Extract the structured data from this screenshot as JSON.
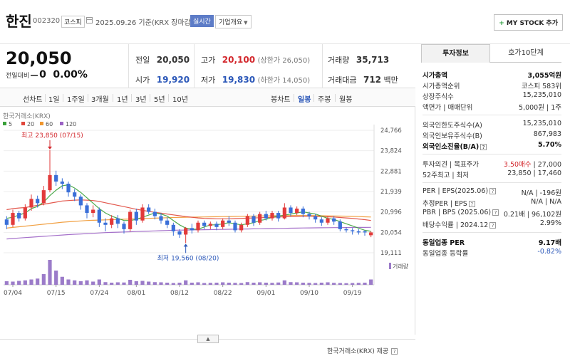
{
  "header": {
    "name": "한진",
    "code": "002320",
    "market": "코스피",
    "date": "2025.09.26 기준(KRX 장마감)",
    "realtime_label": "실시간",
    "company_info_label": "기업개요",
    "mystock_label": "MY STOCK 추가"
  },
  "summary": {
    "price": "20,050",
    "change_label": "전일대비",
    "change_value": "0",
    "change_pct": "0.00%",
    "prev_label": "전일",
    "prev": "20,050",
    "high_label": "고가",
    "high": "20,100",
    "upper_limit": "(상한가 26,050)",
    "volume_label": "거래량",
    "volume": "35,713",
    "open_label": "시가",
    "open": "19,920",
    "low_label": "저가",
    "low": "19,830",
    "lower_limit": "(하한가 14,050)",
    "amount_label": "거래대금",
    "amount": "712",
    "amount_unit": "백만"
  },
  "tabs": {
    "line_chart": "선차트",
    "periods": [
      "1일",
      "1주일",
      "3개월",
      "1년",
      "3년",
      "5년",
      "10년"
    ],
    "candle_chart": "봉차트",
    "candle_periods": [
      "일봉",
      "주봉",
      "월봉"
    ]
  },
  "chart_data": {
    "type": "candlestick",
    "title": "한국거래소(KRX)",
    "legend": [
      "5",
      "20",
      "60",
      "120"
    ],
    "legend_colors": [
      "#3aa13a",
      "#e0473b",
      "#f0962e",
      "#9b62c4"
    ],
    "y_ticks": [
      24766,
      23824,
      22881,
      21939,
      20996,
      20054,
      19111
    ],
    "y_tick_labels": [
      "24,766",
      "23,824",
      "22,881",
      "21,939",
      "20,996",
      "20,054",
      "19,111"
    ],
    "ylim": [
      19111,
      24766
    ],
    "x_tick_labels": [
      "07/04",
      "07/15",
      "07/24",
      "08/01",
      "08/12",
      "08/22",
      "09/01",
      "09/10",
      "09/19"
    ],
    "x_tick_index": [
      1,
      8,
      15,
      21,
      28,
      35,
      42,
      49,
      56
    ],
    "high_annotation": "최고 23,850 (07/15)",
    "low_annotation": "최저 19,560 (08/20)",
    "volume_label": "거래량",
    "candles": [
      {
        "o": 20650,
        "c": 20400,
        "h": 20800,
        "l": 20200
      },
      {
        "o": 20400,
        "c": 20950,
        "h": 21100,
        "l": 20300
      },
      {
        "o": 20950,
        "c": 20700,
        "h": 21050,
        "l": 20550
      },
      {
        "o": 20700,
        "c": 21200,
        "h": 21350,
        "l": 20600
      },
      {
        "o": 21200,
        "c": 21600,
        "h": 21800,
        "l": 21050
      },
      {
        "o": 21600,
        "c": 21400,
        "h": 21750,
        "l": 21200
      },
      {
        "o": 21400,
        "c": 22000,
        "h": 22200,
        "l": 21300
      },
      {
        "o": 22000,
        "c": 22700,
        "h": 23850,
        "l": 21900
      },
      {
        "o": 22700,
        "c": 22400,
        "h": 22900,
        "l": 22200
      },
      {
        "o": 22400,
        "c": 22300,
        "h": 22550,
        "l": 22050
      },
      {
        "o": 22300,
        "c": 21900,
        "h": 22400,
        "l": 21700
      },
      {
        "o": 21900,
        "c": 21700,
        "h": 22050,
        "l": 21500
      },
      {
        "o": 21700,
        "c": 21300,
        "h": 21800,
        "l": 21100
      },
      {
        "o": 21300,
        "c": 20950,
        "h": 21400,
        "l": 20700
      },
      {
        "o": 20950,
        "c": 21100,
        "h": 21300,
        "l": 20750
      },
      {
        "o": 21100,
        "c": 20500,
        "h": 21200,
        "l": 20300
      },
      {
        "o": 20500,
        "c": 20400,
        "h": 20700,
        "l": 20100
      },
      {
        "o": 20400,
        "c": 20700,
        "h": 20850,
        "l": 20250
      },
      {
        "o": 20700,
        "c": 20450,
        "h": 20850,
        "l": 20250
      },
      {
        "o": 20450,
        "c": 20200,
        "h": 20550,
        "l": 20000
      },
      {
        "o": 20200,
        "c": 21000,
        "h": 21100,
        "l": 20100
      },
      {
        "o": 21000,
        "c": 20600,
        "h": 21150,
        "l": 20400
      },
      {
        "o": 20600,
        "c": 21200,
        "h": 21350,
        "l": 20500
      },
      {
        "o": 21200,
        "c": 21000,
        "h": 21350,
        "l": 20900
      },
      {
        "o": 21000,
        "c": 20800,
        "h": 21150,
        "l": 20650
      },
      {
        "o": 20800,
        "c": 20600,
        "h": 20950,
        "l": 20450
      },
      {
        "o": 20600,
        "c": 20400,
        "h": 20750,
        "l": 20250
      },
      {
        "o": 20400,
        "c": 20100,
        "h": 20500,
        "l": 19900
      },
      {
        "o": 20100,
        "c": 19950,
        "h": 20200,
        "l": 19800
      },
      {
        "o": 19950,
        "c": 20250,
        "h": 20300,
        "l": 19560
      },
      {
        "o": 20250,
        "c": 20150,
        "h": 20450,
        "l": 20000
      },
      {
        "o": 20150,
        "c": 20500,
        "h": 20600,
        "l": 20050
      },
      {
        "o": 20500,
        "c": 20350,
        "h": 20600,
        "l": 20200
      },
      {
        "o": 20350,
        "c": 20450,
        "h": 20550,
        "l": 20200
      },
      {
        "o": 20450,
        "c": 20300,
        "h": 20550,
        "l": 20150
      },
      {
        "o": 20300,
        "c": 20600,
        "h": 20700,
        "l": 20200
      },
      {
        "o": 20600,
        "c": 20500,
        "h": 20800,
        "l": 20350
      },
      {
        "o": 20500,
        "c": 20150,
        "h": 20600,
        "l": 20050
      },
      {
        "o": 20150,
        "c": 20400,
        "h": 20500,
        "l": 20050
      },
      {
        "o": 20400,
        "c": 20800,
        "h": 20900,
        "l": 20300
      },
      {
        "o": 20800,
        "c": 20500,
        "h": 20900,
        "l": 20350
      },
      {
        "o": 20500,
        "c": 20900,
        "h": 21000,
        "l": 20400
      },
      {
        "o": 20900,
        "c": 20700,
        "h": 21050,
        "l": 20600
      },
      {
        "o": 20700,
        "c": 20950,
        "h": 21050,
        "l": 20600
      },
      {
        "o": 20950,
        "c": 20700,
        "h": 21050,
        "l": 20550
      },
      {
        "o": 20700,
        "c": 21200,
        "h": 21400,
        "l": 20650
      },
      {
        "o": 21200,
        "c": 20950,
        "h": 21300,
        "l": 20800
      },
      {
        "o": 20950,
        "c": 21150,
        "h": 21250,
        "l": 20850
      },
      {
        "o": 21150,
        "c": 20900,
        "h": 21250,
        "l": 20750
      },
      {
        "o": 20900,
        "c": 20800,
        "h": 21000,
        "l": 20650
      },
      {
        "o": 20800,
        "c": 20650,
        "h": 20900,
        "l": 20500
      },
      {
        "o": 20650,
        "c": 20500,
        "h": 20750,
        "l": 20350
      },
      {
        "o": 20500,
        "c": 20700,
        "h": 20800,
        "l": 20400
      },
      {
        "o": 20700,
        "c": 20550,
        "h": 20800,
        "l": 20400
      },
      {
        "o": 20550,
        "c": 20200,
        "h": 20650,
        "l": 20100
      },
      {
        "o": 20200,
        "c": 20150,
        "h": 20300,
        "l": 20050
      },
      {
        "o": 20150,
        "c": 20100,
        "h": 20250,
        "l": 19950
      },
      {
        "o": 20100,
        "c": 20050,
        "h": 20200,
        "l": 19950
      },
      {
        "o": 20100,
        "c": 20050,
        "h": 20150,
        "l": 19900
      },
      {
        "o": 19920,
        "c": 20050,
        "h": 20100,
        "l": 19830
      }
    ],
    "ma5": [
      20700,
      20750,
      20850,
      20950,
      21150,
      21250,
      21450,
      21750,
      22000,
      22200,
      22250,
      22100,
      21900,
      21650,
      21400,
      21150,
      20950,
      20800,
      20700,
      20600,
      20600,
      20650,
      20750,
      20850,
      20950,
      20900,
      20800,
      20600,
      20400,
      20250,
      20200,
      20200,
      20300,
      20400,
      20400,
      20450,
      20500,
      20450,
      20400,
      20450,
      20500,
      20600,
      20650,
      20750,
      20800,
      20850,
      20900,
      20950,
      21000,
      20950,
      20900,
      20800,
      20700,
      20650,
      20550,
      20450,
      20350,
      20250,
      20150,
      20100
    ],
    "ma20": [
      21100,
      21150,
      21180,
      21200,
      21250,
      21300,
      21350,
      21400,
      21450,
      21500,
      21520,
      21540,
      21550,
      21540,
      21520,
      21480,
      21420,
      21360,
      21300,
      21240,
      21180,
      21120,
      21070,
      21020,
      20980,
      20940,
      20900,
      20860,
      20820,
      20780,
      20750,
      20720,
      20700,
      20690,
      20680,
      20680,
      20680,
      20690,
      20700,
      20710,
      20720,
      20730,
      20740,
      20750,
      20760,
      20770,
      20780,
      20790,
      20800,
      20800,
      20790,
      20780,
      20770,
      20760,
      20740,
      20720,
      20700,
      20670,
      20640,
      20600
    ],
    "ma60": [
      20250,
      20280,
      20310,
      20340,
      20370,
      20400,
      20430,
      20460,
      20490,
      20520,
      20540,
      20560,
      20580,
      20600,
      20610,
      20620,
      20630,
      20640,
      20650,
      20660,
      20670,
      20680,
      20690,
      20700,
      20710,
      20720,
      20730,
      20740,
      20745,
      20750,
      20755,
      20760,
      20765,
      20770,
      20775,
      20780,
      20785,
      20790,
      20795,
      20800,
      20805,
      20810,
      20815,
      20820,
      20820,
      20825,
      20830,
      20830,
      20830,
      20830,
      20825,
      20820,
      20815,
      20810,
      20805,
      20800,
      20790,
      20780,
      20770,
      20760
    ],
    "ma120": [
      19750,
      19770,
      19790,
      19810,
      19830,
      19850,
      19870,
      19890,
      19910,
      19930,
      19950,
      19965,
      19980,
      19995,
      20010,
      20025,
      20040,
      20050,
      20060,
      20070,
      20080,
      20090,
      20100,
      20110,
      20120,
      20130,
      20140,
      20150,
      20155,
      20160,
      20165,
      20170,
      20175,
      20180,
      20185,
      20190,
      20195,
      20200,
      20205,
      20210,
      20215,
      20220,
      20225,
      20230,
      20235,
      20240,
      20245,
      20250,
      20255,
      20260,
      20262,
      20265,
      20268,
      20270,
      20272,
      20275,
      20277,
      20280,
      20282,
      20285
    ],
    "volumes": [
      20,
      18,
      22,
      25,
      30,
      35,
      60,
      140,
      80,
      45,
      30,
      25,
      20,
      25,
      18,
      30,
      15,
      12,
      14,
      13,
      28,
      20,
      22,
      18,
      15,
      14,
      12,
      10,
      12,
      25,
      12,
      14,
      10,
      11,
      12,
      14,
      12,
      11,
      10,
      15,
      12,
      14,
      12,
      11,
      13,
      25,
      15,
      14,
      12,
      11,
      10,
      12,
      14,
      11,
      10,
      9,
      10,
      11,
      12,
      30
    ]
  },
  "right_panel": {
    "tab_invest": "투자정보",
    "tab_quote": "호가10단계",
    "rows1": [
      {
        "k": "시가총액",
        "v": "3,055억원",
        "bold": true
      },
      {
        "k": "시가총액순위",
        "v": "코스피 583위"
      },
      {
        "k": "상장주식수",
        "v": "15,235,010"
      },
      {
        "k": "액면가 | 매매단위",
        "v": "5,000원 | 1주"
      }
    ],
    "rows2": [
      {
        "k": "외국인한도주식수(A)",
        "v": "15,235,010"
      },
      {
        "k": "외국인보유주식수(B)",
        "v": "867,983"
      },
      {
        "k": "외국인소진율(B/A)",
        "v": "5.70%",
        "bold": true
      }
    ],
    "rows3": [
      {
        "k": "투자의견 | 목표주가",
        "v1": "3.50매수",
        "v2": " | 27,000"
      },
      {
        "k": "52주최고 | 최저",
        "v": "23,850 | 17,460"
      }
    ],
    "rows4": [
      {
        "k": "PER | EPS(2025.06)",
        "v": "N/A | -196원"
      },
      {
        "k": "추정PER | EPS",
        "v": "N/A | N/A"
      },
      {
        "k": "PBR | BPS (2025.06)",
        "v": "0.21배 | 96,102원"
      },
      {
        "k": "배당수익률 | 2024.12",
        "v": "2.99%"
      }
    ],
    "rows5": [
      {
        "k": "동일업종 PER",
        "v": "9.17배",
        "bold": true
      },
      {
        "k": "동일업종 등락률",
        "v": "-0.82%"
      }
    ]
  },
  "footer": {
    "source": "한국거래소(KRX) 제공"
  }
}
